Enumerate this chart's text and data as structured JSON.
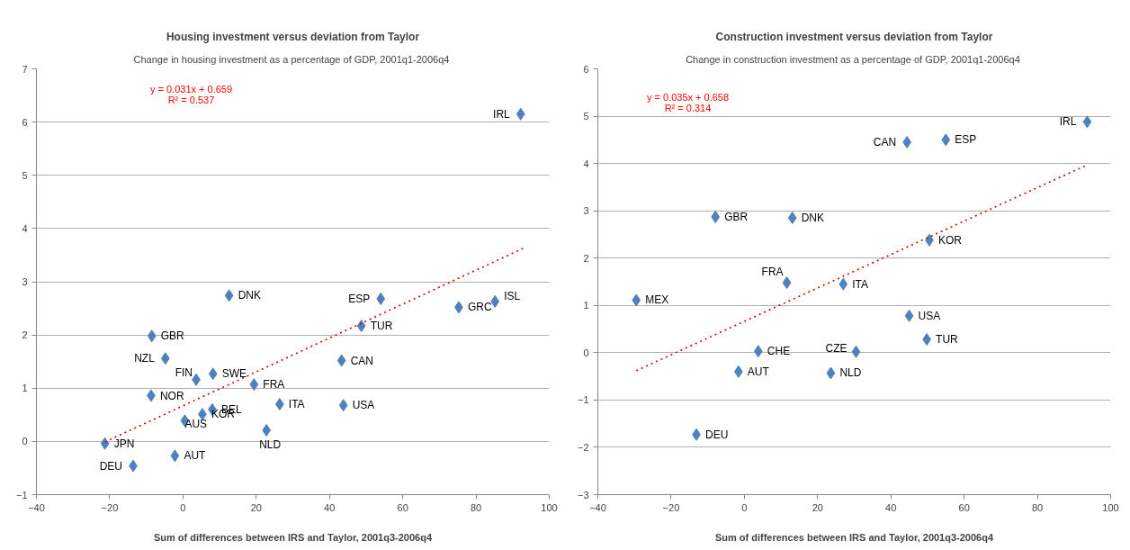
{
  "chart_data": [
    {
      "type": "scatter",
      "title": "Housing investment versus deviation from Taylor",
      "subtitle": "Change in housing investment as a percentage of GDP,  2001q1-2006q4",
      "xlabel": "Sum of differences between IRS and Taylor, 2001q3-2006q4",
      "xlim": [
        -40,
        100
      ],
      "xticks": [
        -40,
        -20,
        0,
        20,
        40,
        60,
        80,
        100
      ],
      "ylim": [
        -1,
        7
      ],
      "yticks": [
        -1,
        0,
        1,
        2,
        3,
        4,
        5,
        6,
        7
      ],
      "grid": "y",
      "marker": "diamond",
      "series": [
        {
          "color": "#4f81bd",
          "x": [
            92.2,
            85.2,
            75.3,
            54.0,
            48.7,
            43.3,
            43.8,
            12.6,
            -8.5,
            -4.8,
            3.6,
            8.2,
            19.4,
            -8.7,
            26.4,
            8.0,
            5.3,
            0.5,
            22.8,
            -21.3,
            -2.2,
            -13.6
          ],
          "values": [
            6.15,
            2.63,
            2.52,
            2.68,
            2.17,
            1.52,
            0.68,
            2.74,
            1.98,
            1.56,
            1.16,
            1.27,
            1.07,
            0.86,
            0.7,
            0.6,
            0.51,
            0.39,
            0.21,
            -0.04,
            -0.27,
            -0.46
          ]
        },
        {
          "type": "line",
          "color": "#cc0000",
          "line_style": "dotted",
          "marker": "none",
          "x": [
            -21.3,
            93.6
          ],
          "values": [
            -0.01,
            3.65
          ]
        }
      ],
      "annotations": [
        "y = 0.031x + 0.659",
        "R² = 0.537",
        {
          "text": "IRL",
          "x": 92.2,
          "y": 6.15
        },
        {
          "text": "ISL",
          "x": 85.2,
          "y": 2.63
        },
        {
          "text": "GRC",
          "x": 75.3,
          "y": 2.52
        },
        {
          "text": "ESP",
          "x": 54.0,
          "y": 2.68
        },
        {
          "text": "TUR",
          "x": 48.7,
          "y": 2.17
        },
        {
          "text": "CAN",
          "x": 43.3,
          "y": 1.52
        },
        {
          "text": "USA",
          "x": 43.8,
          "y": 0.68
        },
        {
          "text": "DNK",
          "x": 12.6,
          "y": 2.74
        },
        {
          "text": "GBR",
          "x": -8.5,
          "y": 1.98
        },
        {
          "text": "NZL",
          "x": -4.8,
          "y": 1.56
        },
        {
          "text": "FIN",
          "x": 3.6,
          "y": 1.16
        },
        {
          "text": "SWE",
          "x": 8.2,
          "y": 1.27
        },
        {
          "text": "FRA",
          "x": 19.4,
          "y": 1.07
        },
        {
          "text": "NOR",
          "x": -8.7,
          "y": 0.86
        },
        {
          "text": "ITA",
          "x": 26.4,
          "y": 0.7
        },
        {
          "text": "BEL",
          "x": 8.0,
          "y": 0.6
        },
        {
          "text": "KOR",
          "x": 5.3,
          "y": 0.51
        },
        {
          "text": "AUS",
          "x": 0.5,
          "y": 0.39
        },
        {
          "text": "NLD",
          "x": 22.8,
          "y": 0.21
        },
        {
          "text": "JPN",
          "x": -21.3,
          "y": -0.04
        },
        {
          "text": "AUT",
          "x": -2.2,
          "y": -0.27
        },
        {
          "text": "DEU",
          "x": -13.6,
          "y": -0.46
        }
      ]
    },
    {
      "type": "scatter",
      "title": "Construction investment versus deviation from Taylor",
      "subtitle": "Change in construction investment as a percentage of GDP,  2001q1-2006q4",
      "xlabel": "Sum of differences between IRS and Taylor, 2001q3-2006q4",
      "xlim": [
        -40,
        100
      ],
      "xticks": [
        -40,
        -20,
        0,
        20,
        40,
        60,
        80,
        100
      ],
      "ylim": [
        -3,
        6
      ],
      "yticks": [
        -3,
        -2,
        -1,
        0,
        1,
        2,
        3,
        4,
        5,
        6
      ],
      "grid": "y",
      "marker": "diamond",
      "series": [
        {
          "color": "#4f81bd",
          "x": [
            93.6,
            55.0,
            44.4,
            50.5,
            -7.9,
            13.1,
            11.6,
            27.0,
            -29.5,
            45.0,
            49.8,
            3.8,
            30.5,
            -1.6,
            23.6,
            -13.1
          ],
          "values": [
            4.88,
            4.5,
            4.45,
            2.38,
            2.87,
            2.85,
            1.48,
            1.45,
            1.11,
            0.78,
            0.28,
            0.03,
            0.02,
            -0.4,
            -0.43,
            -1.73
          ]
        },
        {
          "type": "line",
          "color": "#cc0000",
          "line_style": "dotted",
          "marker": "none",
          "x": [
            -29.5,
            93.6
          ],
          "values": [
            -0.38,
            3.97
          ]
        }
      ],
      "annotations": [
        "y = 0.035x + 0.658",
        "R² = 0.314",
        {
          "text": "IRL",
          "x": 93.6,
          "y": 4.88
        },
        {
          "text": "ESP",
          "x": 55.0,
          "y": 4.5
        },
        {
          "text": "CAN",
          "x": 44.4,
          "y": 4.45
        },
        {
          "text": "KOR",
          "x": 50.5,
          "y": 2.38
        },
        {
          "text": "GBR",
          "x": -7.9,
          "y": 2.87
        },
        {
          "text": "DNK",
          "x": 13.1,
          "y": 2.85
        },
        {
          "text": "FRA",
          "x": 11.6,
          "y": 1.48
        },
        {
          "text": "ITA",
          "x": 27.0,
          "y": 1.45
        },
        {
          "text": "MEX",
          "x": -29.5,
          "y": 1.11
        },
        {
          "text": "USA",
          "x": 45.0,
          "y": 0.78
        },
        {
          "text": "TUR",
          "x": 49.8,
          "y": 0.28
        },
        {
          "text": "CHE",
          "x": 3.8,
          "y": 0.03
        },
        {
          "text": "CZE",
          "x": 30.5,
          "y": 0.02
        },
        {
          "text": "AUT",
          "x": -1.6,
          "y": -0.4
        },
        {
          "text": "NLD",
          "x": 23.6,
          "y": -0.43
        },
        {
          "text": "DEU",
          "x": -13.1,
          "y": -1.73
        }
      ]
    }
  ]
}
